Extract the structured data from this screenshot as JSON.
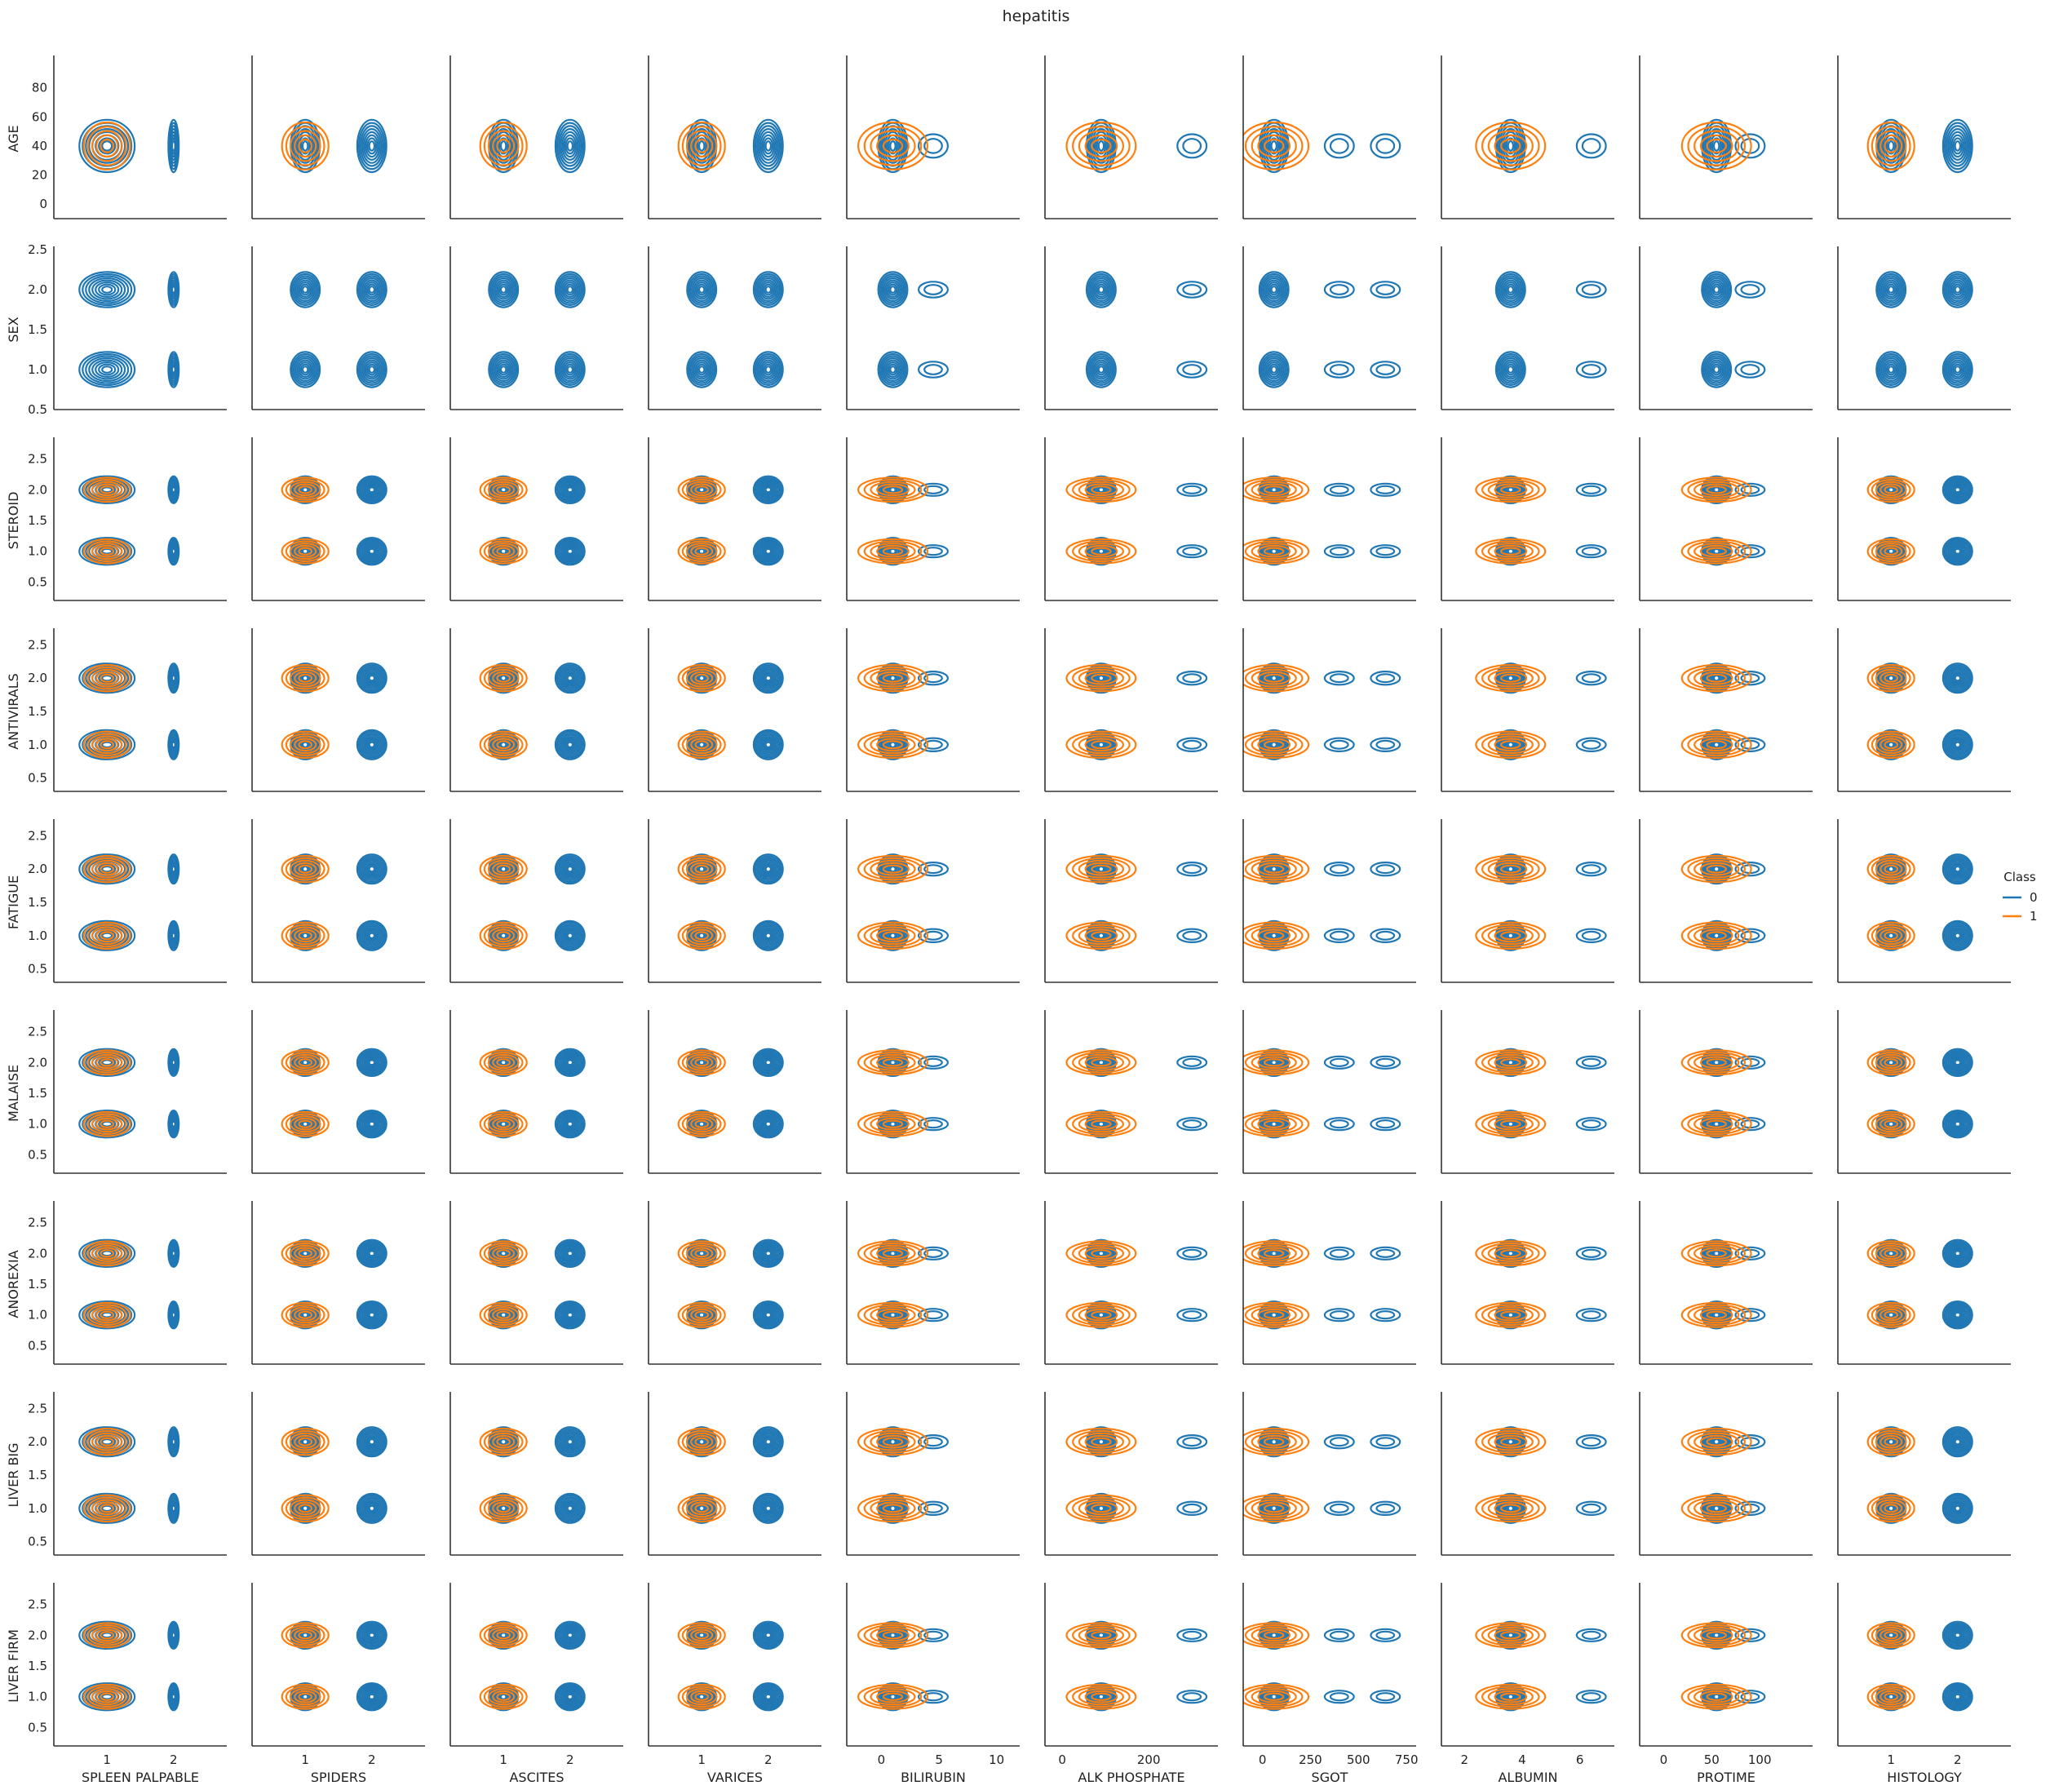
{
  "chart_data": {
    "type": "kde-contour-grid",
    "title": "hepatitis",
    "legend": {
      "title": "Class",
      "placement": "right",
      "entries": [
        {
          "label": "0",
          "color": "#1f77b4"
        },
        {
          "label": "1",
          "color": "#ff7f0e"
        }
      ]
    },
    "x_variables": [
      {
        "name": "SPLEEN PALPABLE",
        "xlim": [
          0.2,
          2.8
        ],
        "ticks": [
          1,
          2
        ],
        "tick_labels": [
          "1",
          "2"
        ],
        "clusters": [
          1,
          2
        ]
      },
      {
        "name": "SPIDERS",
        "xlim": [
          0.2,
          2.8
        ],
        "ticks": [
          1,
          2
        ],
        "tick_labels": [
          "1",
          "2"
        ],
        "clusters": [
          1,
          2
        ]
      },
      {
        "name": "ASCITES",
        "xlim": [
          0.2,
          2.8
        ],
        "ticks": [
          1,
          2
        ],
        "tick_labels": [
          "1",
          "2"
        ],
        "clusters": [
          1,
          2
        ]
      },
      {
        "name": "VARICES",
        "xlim": [
          0.2,
          2.8
        ],
        "ticks": [
          1,
          2
        ],
        "tick_labels": [
          "1",
          "2"
        ],
        "clusters": [
          1,
          2
        ]
      },
      {
        "name": "BILIRUBIN",
        "xlim": [
          -3,
          12
        ],
        "ticks": [
          0,
          5,
          10
        ],
        "tick_labels": [
          "0",
          "5",
          "10"
        ],
        "clusters": [
          1,
          4.5
        ]
      },
      {
        "name": "ALK PHOSPHATE",
        "xlim": [
          -40,
          360
        ],
        "ticks": [
          0,
          200
        ],
        "tick_labels": [
          "0",
          "200"
        ],
        "clusters": [
          90,
          300
        ]
      },
      {
        "name": "SGOT",
        "xlim": [
          -100,
          800
        ],
        "ticks": [
          0,
          250,
          500,
          750
        ],
        "tick_labels": [
          "0",
          "250",
          "500",
          "750"
        ],
        "clusters": [
          60,
          400,
          640
        ]
      },
      {
        "name": "ALBUMIN",
        "xlim": [
          1.2,
          7.2
        ],
        "ticks": [
          2,
          4,
          6
        ],
        "tick_labels": [
          "2",
          "4",
          "6"
        ],
        "clusters": [
          3.6,
          6.4
        ]
      },
      {
        "name": "PROTIME",
        "xlim": [
          -25,
          155
        ],
        "ticks": [
          0,
          50,
          100
        ],
        "tick_labels": [
          "0",
          "50",
          "100"
        ],
        "clusters": [
          55,
          90
        ]
      },
      {
        "name": "HISTOLOGY",
        "xlim": [
          0.2,
          2.8
        ],
        "ticks": [
          1,
          2
        ],
        "tick_labels": [
          "1",
          "2"
        ],
        "clusters": [
          1,
          2
        ]
      }
    ],
    "y_variables": [
      {
        "name": "AGE",
        "ylim": [
          -10,
          100
        ],
        "ticks": [
          0,
          20,
          40,
          60,
          80
        ],
        "tick_labels": [
          "0",
          "20",
          "40",
          "60",
          "80"
        ],
        "center": 40,
        "spread": 18
      },
      {
        "name": "SEX",
        "ylim": [
          0.5,
          2.5
        ],
        "ticks": [
          0.5,
          1.0,
          1.5,
          2.0,
          2.5
        ],
        "tick_labels": [
          "0.5",
          "1.0",
          "1.5",
          "2.0",
          "2.5"
        ],
        "levels": [
          1,
          2
        ]
      },
      {
        "name": "STEROID",
        "ylim": [
          0.2,
          2.8
        ],
        "ticks": [
          0.5,
          1.0,
          1.5,
          2.0,
          2.5
        ],
        "tick_labels": [
          "0.5",
          "1.0",
          "1.5",
          "2.0",
          "2.5"
        ],
        "levels": [
          1,
          2
        ]
      },
      {
        "name": "ANTIVIRALS",
        "ylim": [
          0.3,
          2.7
        ],
        "ticks": [
          0.5,
          1.0,
          1.5,
          2.0,
          2.5
        ],
        "tick_labels": [
          "0.5",
          "1.0",
          "1.5",
          "2.0",
          "2.5"
        ],
        "levels": [
          1,
          2
        ]
      },
      {
        "name": "FATIGUE",
        "ylim": [
          0.3,
          2.7
        ],
        "ticks": [
          0.5,
          1.0,
          1.5,
          2.0,
          2.5
        ],
        "tick_labels": [
          "0.5",
          "1.0",
          "1.5",
          "2.0",
          "2.5"
        ],
        "levels": [
          1,
          2
        ]
      },
      {
        "name": "MALAISE",
        "ylim": [
          0.2,
          2.8
        ],
        "ticks": [
          0.5,
          1.0,
          1.5,
          2.0,
          2.5
        ],
        "tick_labels": [
          "0.5",
          "1.0",
          "1.5",
          "2.0",
          "2.5"
        ],
        "levels": [
          1,
          2
        ]
      },
      {
        "name": "ANOREXIA",
        "ylim": [
          0.2,
          2.8
        ],
        "ticks": [
          0.5,
          1.0,
          1.5,
          2.0,
          2.5
        ],
        "tick_labels": [
          "0.5",
          "1.0",
          "1.5",
          "2.0",
          "2.5"
        ],
        "levels": [
          1,
          2
        ]
      },
      {
        "name": "LIVER BIG",
        "ylim": [
          0.3,
          2.7
        ],
        "ticks": [
          0.5,
          1.0,
          1.5,
          2.0,
          2.5
        ],
        "tick_labels": [
          "0.5",
          "1.0",
          "1.5",
          "2.0",
          "2.5"
        ],
        "levels": [
          1,
          2
        ]
      },
      {
        "name": "LIVER FIRM",
        "ylim": [
          0.2,
          2.8
        ],
        "ticks": [
          0.5,
          1.0,
          1.5,
          2.0,
          2.5
        ],
        "tick_labels": [
          "0.5",
          "1.0",
          "1.5",
          "2.0",
          "2.5"
        ],
        "levels": [
          1,
          2
        ]
      }
    ],
    "class_present": {
      "0": "all rows",
      "1": "all rows except SEX"
    },
    "grid": false
  }
}
